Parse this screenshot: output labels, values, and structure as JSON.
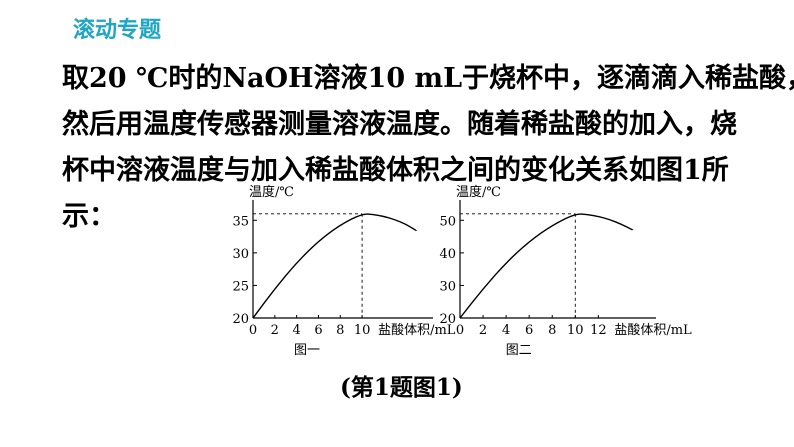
{
  "header": {
    "title": "滚动专题"
  },
  "problem": {
    "lines": [
      "取20 ℃时的NaOH溶液10 mL于烧杯中，逐滴滴入稀盐酸，",
      "然后用温度传感器测量溶液温度。随着稀盐酸的加入，烧",
      "杯中溶液温度与加入稀盐酸体积之间的变化关系如图1所",
      "示："
    ]
  },
  "figure_caption": "(第1题图1)",
  "chart_data": [
    {
      "type": "line",
      "title": "图一",
      "xlabel": "盐酸体积/mL",
      "ylabel": "温度/℃",
      "xticks": [
        0,
        2,
        4,
        6,
        8,
        10
      ],
      "yticks": [
        20,
        25,
        30,
        35
      ],
      "xlim": [
        0,
        16.5
      ],
      "ylim": [
        20,
        37.5
      ],
      "peak": {
        "x": 10,
        "y": 36
      },
      "series": [
        {
          "x": [
            0,
            2,
            4,
            6,
            8,
            10,
            11,
            12,
            13,
            14,
            15
          ],
          "y": [
            20,
            24.5,
            28.5,
            31.8,
            34.3,
            36,
            35.9,
            35.6,
            35.1,
            34.4,
            33.4
          ]
        }
      ]
    },
    {
      "type": "line",
      "title": "图二",
      "xlabel": "盐酸体积/mL",
      "ylabel": "温度/℃",
      "xticks": [
        0,
        2,
        4,
        6,
        8,
        10,
        12
      ],
      "yticks": [
        20,
        30,
        40,
        50
      ],
      "xlim": [
        0,
        17
      ],
      "ylim": [
        20,
        55
      ],
      "peak": {
        "x": 10,
        "y": 52
      },
      "series": [
        {
          "x": [
            0,
            2,
            4,
            6,
            8,
            10,
            11,
            12,
            13,
            14,
            15
          ],
          "y": [
            20,
            29,
            37,
            43.5,
            48.5,
            52,
            51.8,
            51.2,
            50.2,
            48.8,
            47
          ]
        }
      ]
    }
  ]
}
